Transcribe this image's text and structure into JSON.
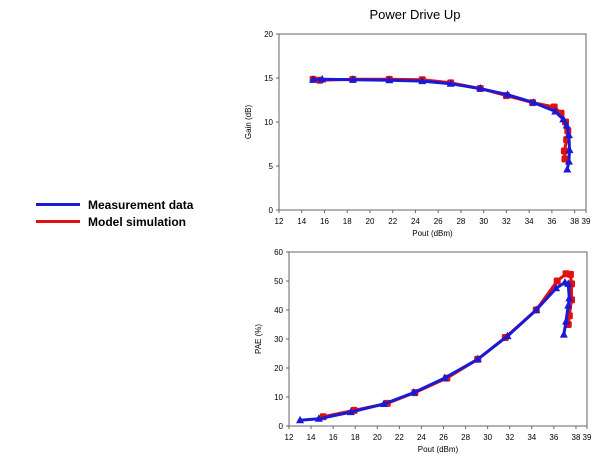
{
  "chart_data": [
    {
      "type": "line",
      "title": "Power Drive Up",
      "xlabel": "Pout (dBm)",
      "ylabel": "Gain (dB)",
      "xlim": [
        12,
        39
      ],
      "ylim": [
        0,
        20
      ],
      "xticks": [
        12,
        14,
        16,
        18,
        20,
        22,
        24,
        26,
        28,
        30,
        32,
        34,
        36,
        38,
        39
      ],
      "yticks": [
        0,
        5,
        10,
        15,
        20
      ],
      "grid": false,
      "series": [
        {
          "name": "Measurement data",
          "color": "#1a1ad6",
          "values": [
            [
              15.0,
              14.8
            ],
            [
              15.8,
              14.85
            ],
            [
              18.5,
              14.8
            ],
            [
              21.7,
              14.75
            ],
            [
              24.6,
              14.65
            ],
            [
              27.1,
              14.35
            ],
            [
              29.7,
              13.8
            ],
            [
              32.1,
              13.1
            ],
            [
              34.4,
              12.2
            ],
            [
              36.3,
              11.2
            ],
            [
              37.0,
              10.3
            ],
            [
              37.3,
              9.6
            ],
            [
              37.5,
              8.5
            ],
            [
              37.55,
              6.8
            ],
            [
              37.5,
              5.5
            ],
            [
              37.35,
              4.6
            ]
          ]
        },
        {
          "name": "Model simulation",
          "color": "#e01010",
          "values": [
            [
              15.0,
              14.85
            ],
            [
              15.6,
              14.75
            ],
            [
              18.5,
              14.85
            ],
            [
              21.7,
              14.85
            ],
            [
              24.6,
              14.8
            ],
            [
              27.1,
              14.45
            ],
            [
              29.7,
              13.8
            ],
            [
              32.0,
              13.0
            ],
            [
              34.3,
              12.2
            ],
            [
              36.2,
              11.7
            ],
            [
              36.8,
              11.0
            ],
            [
              37.2,
              10.0
            ],
            [
              37.4,
              9.0
            ],
            [
              37.3,
              8.0
            ],
            [
              37.1,
              6.7
            ],
            [
              37.15,
              5.8
            ]
          ]
        }
      ]
    },
    {
      "type": "line",
      "title": "",
      "xlabel": "Pout (dBm)",
      "ylabel": "PAE (%)",
      "xlim": [
        12,
        39
      ],
      "ylim": [
        0,
        60
      ],
      "xticks": [
        12,
        14,
        16,
        18,
        20,
        22,
        24,
        26,
        28,
        30,
        32,
        34,
        36,
        38,
        39
      ],
      "yticks": [
        0,
        10,
        20,
        30,
        40,
        50,
        60
      ],
      "grid": false,
      "series": [
        {
          "name": "Measurement data",
          "color": "#1a1ad6",
          "values": [
            [
              13.0,
              2.0
            ],
            [
              14.7,
              2.5
            ],
            [
              17.6,
              4.8
            ],
            [
              20.6,
              7.6
            ],
            [
              23.3,
              11.5
            ],
            [
              26.1,
              16.5
            ],
            [
              29.1,
              23.0
            ],
            [
              31.8,
              31.0
            ],
            [
              34.4,
              40.0
            ],
            [
              36.2,
              47.5
            ],
            [
              37.0,
              49.5
            ],
            [
              37.3,
              49.0
            ],
            [
              37.4,
              44.0
            ],
            [
              37.3,
              41.5
            ],
            [
              37.1,
              36.0
            ],
            [
              36.9,
              31.5
            ]
          ]
        },
        {
          "name": "Model simulation",
          "color": "#e01010",
          "values": [
            [
              15.1,
              3.2
            ],
            [
              17.9,
              5.4
            ],
            [
              20.9,
              7.8
            ],
            [
              23.4,
              11.5
            ],
            [
              26.3,
              16.5
            ],
            [
              29.1,
              23.0
            ],
            [
              31.6,
              30.5
            ],
            [
              34.4,
              40.0
            ],
            [
              36.3,
              50.0
            ],
            [
              37.1,
              52.5
            ],
            [
              37.5,
              52.3
            ],
            [
              37.6,
              49.0
            ],
            [
              37.6,
              43.5
            ],
            [
              37.4,
              38.0
            ],
            [
              37.3,
              35.0
            ]
          ]
        }
      ]
    }
  ],
  "legend": [
    {
      "label": "Measurement data",
      "color": "#1a1ad6"
    },
    {
      "label": "Model simulation",
      "color": "#e01010"
    }
  ]
}
